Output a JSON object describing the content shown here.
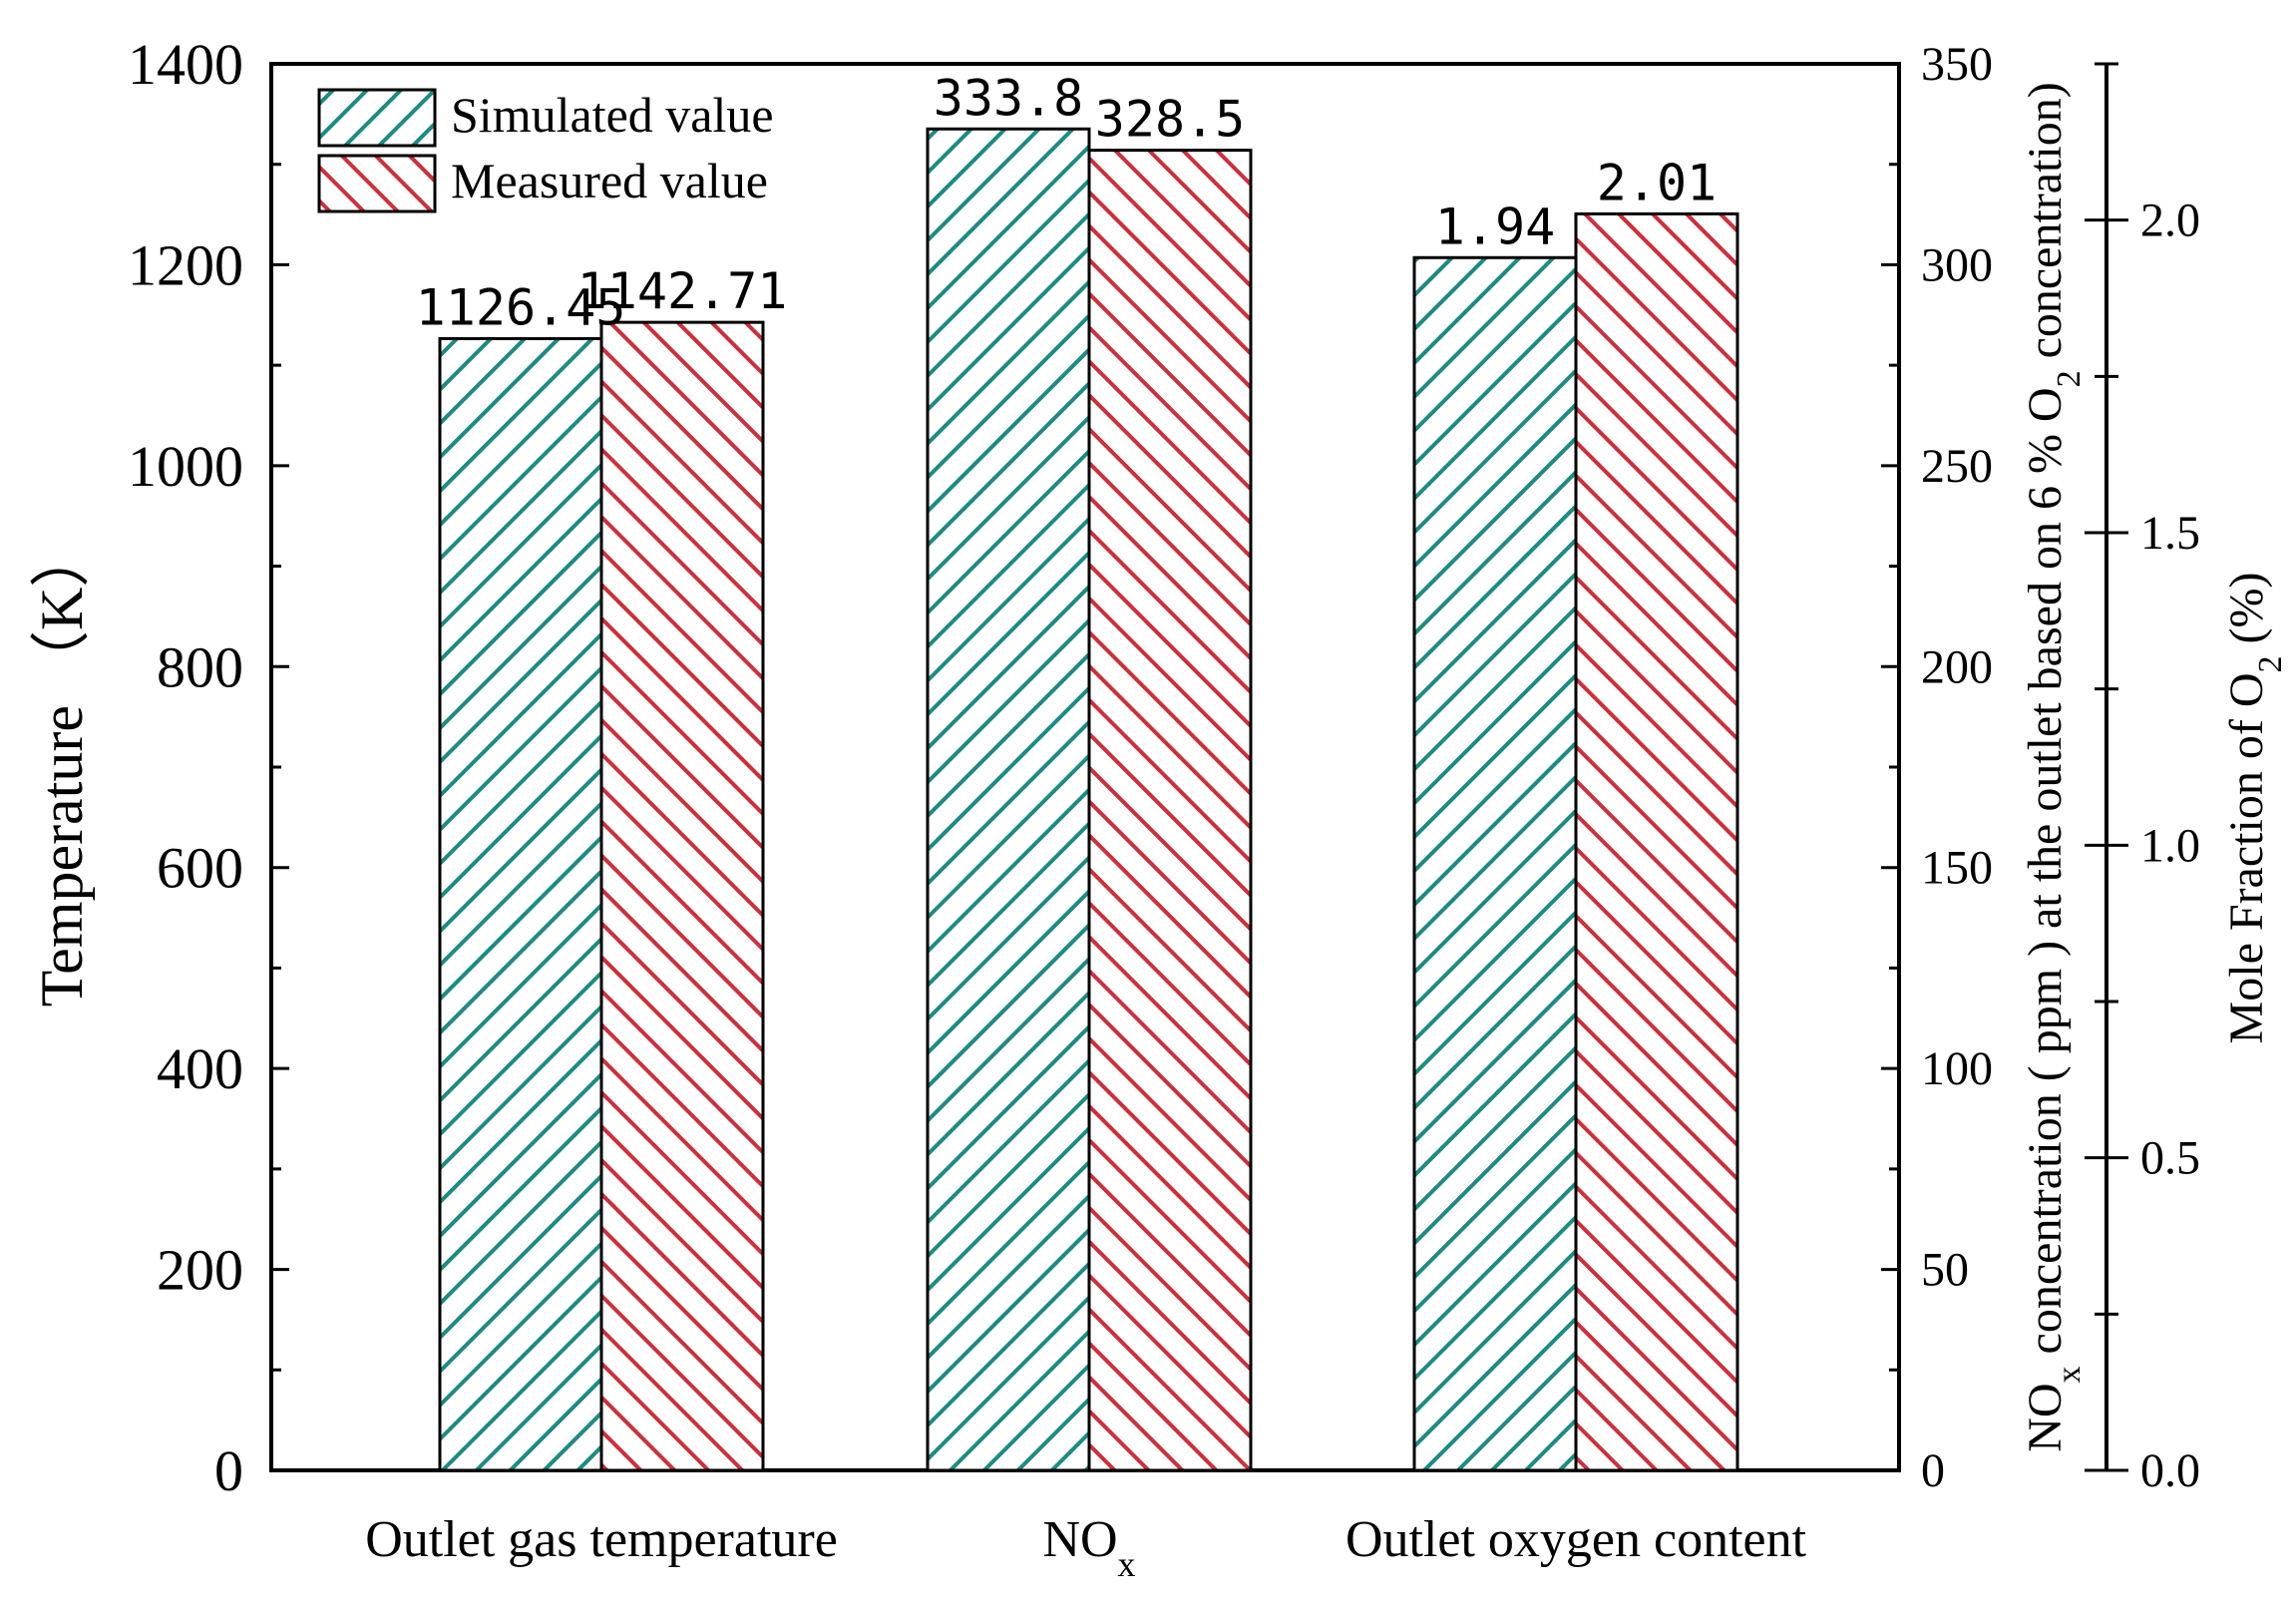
{
  "chart_data": {
    "type": "bar",
    "categories": [
      "Outlet gas temperature",
      "NOx",
      "Outlet oxygen content"
    ],
    "category_display": [
      {
        "main": "Outlet gas temperature",
        "sub": ""
      },
      {
        "main": "NO",
        "sub": "x"
      },
      {
        "main": "Outlet oxygen content",
        "sub": ""
      }
    ],
    "series": [
      {
        "name": "Simulated value",
        "color": "#1f8a82",
        "values": [
          1126.45,
          333.8,
          1.94
        ],
        "labels": [
          "1126.45",
          "333.8",
          "1.94"
        ]
      },
      {
        "name": "Measured value",
        "color": "#c8323c",
        "values": [
          1142.71,
          328.5,
          2.01
        ],
        "labels": [
          "1142.71",
          "328.5",
          "2.01"
        ]
      }
    ],
    "bar_axis": [
      "left",
      "right1",
      "right2"
    ],
    "axes": {
      "left": {
        "label": "Temperature （K）",
        "ylim": [
          0,
          1400
        ],
        "ticks": [
          0,
          200,
          400,
          600,
          800,
          1000,
          1200,
          1400
        ],
        "tick_labels": [
          "0",
          "200",
          "400",
          "600",
          "800",
          "1000",
          "1200",
          "1400"
        ]
      },
      "right1": {
        "label_main": "NO",
        "label_sub": "x",
        "label_rest_1": " concentration ( ppm ) at the outlet based on 6 % O",
        "label_sub2": "2",
        "label_rest_2": " concentration)",
        "ylim": [
          0,
          350
        ],
        "ticks": [
          0,
          50,
          100,
          150,
          200,
          250,
          300,
          350
        ],
        "tick_labels": [
          "0",
          "50",
          "100",
          "150",
          "200",
          "250",
          "300",
          "350"
        ]
      },
      "right2": {
        "label_main": "Mole Fraction of O",
        "label_sub": "2",
        "label_rest": " (%)",
        "ylim": [
          0,
          2.25
        ],
        "ticks": [
          0,
          0.5,
          1.0,
          1.5,
          2.0
        ],
        "tick_labels": [
          "0.0",
          "0.5",
          "1.0",
          "1.5",
          "2.0"
        ]
      }
    },
    "legend": {
      "position": "top-left",
      "pattern": "hatched"
    },
    "grid": false
  }
}
